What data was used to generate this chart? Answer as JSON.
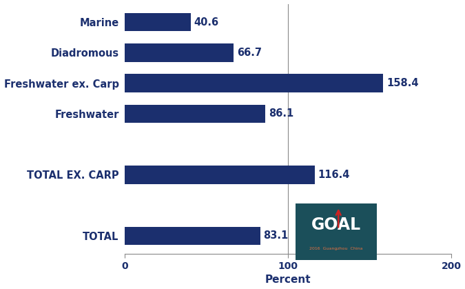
{
  "categories": [
    "TOTAL",
    "",
    "TOTAL EX. CARP",
    "",
    "Freshwater",
    "Freshwater ex. Carp",
    "Diadromous",
    "Marine"
  ],
  "values": [
    83.1,
    0,
    116.4,
    0,
    86.1,
    158.4,
    66.7,
    40.6
  ],
  "bar_color": "#1b2f6e",
  "label_color": "#1b2f6e",
  "value_label_color": "#1b2f6e",
  "xlim": [
    0,
    200
  ],
  "xticks": [
    0,
    100,
    200
  ],
  "xlabel": "Percent",
  "bar_height": 0.6,
  "figsize": [
    6.75,
    4.19
  ],
  "dpi": 100,
  "background_color": "#ffffff",
  "font_size_labels": 10.5,
  "font_size_values": 10.5,
  "font_size_xlabel": 11,
  "logo_bg_color": "#1b4f5a",
  "logo_text_color": "#ffffff",
  "logo_subtitle_color": "#e87040",
  "logo_arrow_color": "#cc2222"
}
